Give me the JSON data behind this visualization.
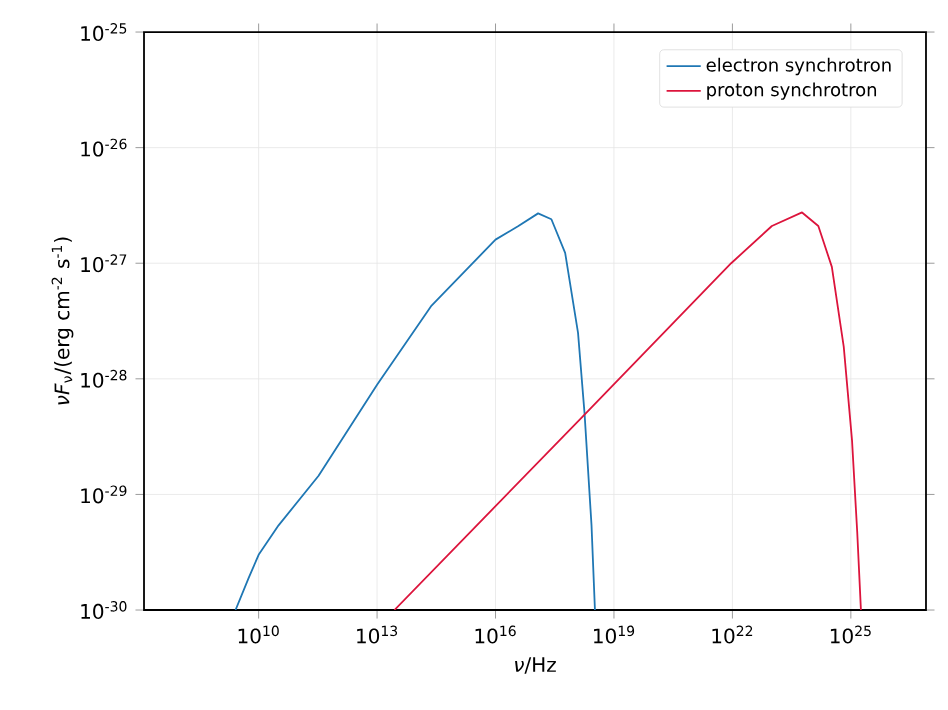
{
  "chart_data": {
    "type": "line",
    "xlabel": "*ν*/Hz",
    "ylabel": "*νF*$_{ν}$/(erg cm$^{-2}$ s$^{-1}$)",
    "log": "xy",
    "grid": true,
    "legend": "top right",
    "marker": "none",
    "line_style": "solid",
    "xlim": [
      12500000.0,
      8e+26
    ],
    "ylim": [
      1e-30,
      1e-25
    ],
    "xticks": [
      {
        "value": 10000000000.0,
        "label": "10$^{10}$"
      },
      {
        "value": 10000000000000.0,
        "label": "10$^{13}$"
      },
      {
        "value": 1e+16,
        "label": "10$^{16}$"
      },
      {
        "value": 1e+19,
        "label": "10$^{19}$"
      },
      {
        "value": 1e+22,
        "label": "10$^{22}$"
      },
      {
        "value": 1e+25,
        "label": "10$^{25}$"
      }
    ],
    "yticks": [
      {
        "value": 1e-30,
        "label": "10$^{-30}$"
      },
      {
        "value": 1e-29,
        "label": "10$^{-29}$"
      },
      {
        "value": 1e-28,
        "label": "10$^{-28}$"
      },
      {
        "value": 1e-27,
        "label": "10$^{-27}$"
      },
      {
        "value": 1e-26,
        "label": "10$^{-26}$"
      },
      {
        "value": 1e-25,
        "label": "10$^{-25}$"
      }
    ],
    "series": [
      {
        "name": "electron synchrotron",
        "color": "#1f77b4",
        "x": [
          2600000000.0,
          5600000000.0,
          10000000000.0,
          32000000000.0,
          330000000000.0,
          10000000000000.0,
          240000000000000.0,
          1e+16,
          3.8e+16,
          1.2e+17,
          2.6e+17,
          5.8e+17,
          1.23e+18,
          1.8e+18,
          2.7e+18,
          3.3e+18
        ],
        "values": [
          1e-30,
          1.9e-30,
          3e-30,
          5.4e-30,
          1.45e-29,
          8.9e-29,
          4.3e-28,
          1.6e-27,
          2.1e-27,
          2.7e-27,
          2.4e-27,
          1.23e-27,
          2.5e-28,
          5e-29,
          5.4e-30,
          1e-30
        ]
      },
      {
        "name": "proton synchrotron",
        "color": "#dc143c",
        "x": [
          27500000000000.0,
          1.7e+18,
          9.3e+21,
          1e+23,
          5.8e+23,
          1.5e+24,
          3.3e+24,
          6.6e+24,
          1.07e+25,
          1.45e+25,
          1.8e+25
        ],
        "values": [
          1e-30,
          4.8e-29,
          1e-27,
          2.1e-27,
          2.75e-27,
          2.1e-27,
          9.3e-28,
          1.9e-28,
          2.95e-29,
          4.7e-30,
          1e-30
        ]
      }
    ]
  }
}
